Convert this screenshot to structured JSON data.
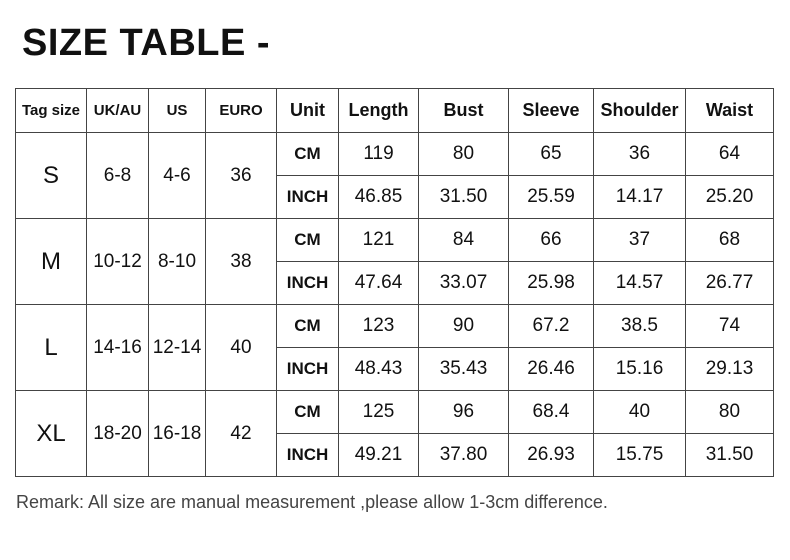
{
  "title": "SIZE TABLE -",
  "headers": [
    "Tag size",
    "UK/AU",
    "US",
    "EURO",
    "Unit",
    "Length",
    "Bust",
    "Sleeve",
    "Shoulder",
    "Waist"
  ],
  "sizes": [
    {
      "tag": "S",
      "uk": "6-8",
      "us": "4-6",
      "euro": "36",
      "cm": [
        "119",
        "80",
        "65",
        "36",
        "64"
      ],
      "inch": [
        "46.85",
        "31.50",
        "25.59",
        "14.17",
        "25.20"
      ]
    },
    {
      "tag": "M",
      "uk": "10-12",
      "us": "8-10",
      "euro": "38",
      "cm": [
        "121",
        "84",
        "66",
        "37",
        "68"
      ],
      "inch": [
        "47.64",
        "33.07",
        "25.98",
        "14.57",
        "26.77"
      ]
    },
    {
      "tag": "L",
      "uk": "14-16",
      "us": "12-14",
      "euro": "40",
      "cm": [
        "123",
        "90",
        "67.2",
        "38.5",
        "74"
      ],
      "inch": [
        "48.43",
        "35.43",
        "26.46",
        "15.16",
        "29.13"
      ]
    },
    {
      "tag": "XL",
      "uk": "18-20",
      "us": "16-18",
      "euro": "42",
      "cm": [
        "125",
        "96",
        "68.4",
        "40",
        "80"
      ],
      "inch": [
        "49.21",
        "37.80",
        "26.93",
        "15.75",
        "31.50"
      ]
    }
  ],
  "units": {
    "cm": "CM",
    "inch": "INCH"
  },
  "remark": "Remark: All size are manual measurement ,please allow 1-3cm difference."
}
